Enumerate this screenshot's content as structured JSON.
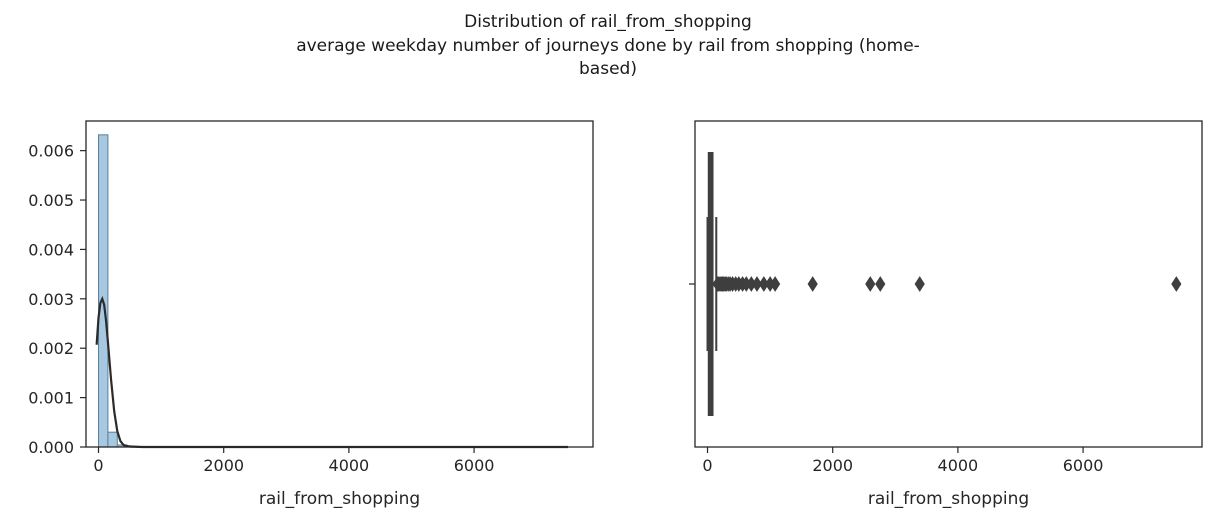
{
  "figure": {
    "title_line1": "Distribution of rail_from_shopping",
    "title_line2": "average weekday number of journeys done by rail from shopping (home-",
    "title_line3": "based)"
  },
  "colors": {
    "hist_fill": "#a6c8e0",
    "hist_edge": "#5b7f99",
    "kde": "#2b2b2b",
    "box": "#3f3f3f"
  },
  "chart_data": [
    {
      "type": "bar",
      "subtype": "histogram_with_kde",
      "xlabel": "rail_from_shopping",
      "ylabel": "",
      "xlim": [
        -200,
        7900
      ],
      "ylim": [
        0,
        0.0066
      ],
      "xticks": [
        0,
        2000,
        4000,
        6000
      ],
      "xtick_labels": [
        "0",
        "2000",
        "4000",
        "6000"
      ],
      "yticks": [
        0,
        0.001,
        0.002,
        0.003,
        0.004,
        0.005,
        0.006
      ],
      "ytick_labels": [
        "0.000",
        "0.001",
        "0.002",
        "0.003",
        "0.004",
        "0.005",
        "0.006"
      ],
      "bins": [
        {
          "x0": 0,
          "x1": 150,
          "density": 0.00632
        },
        {
          "x0": 150,
          "x1": 300,
          "density": 0.0003
        },
        {
          "x0": 300,
          "x1": 450,
          "density": 4e-05
        },
        {
          "x0": 450,
          "x1": 600,
          "density": 1e-05
        }
      ],
      "kde": {
        "x": [
          -30,
          0,
          30,
          60,
          90,
          120,
          150,
          200,
          250,
          300,
          350,
          400,
          500,
          700,
          1000,
          2000,
          4000,
          6000,
          7500
        ],
        "y": [
          0.00207,
          0.00262,
          0.00292,
          0.003,
          0.00288,
          0.00256,
          0.00213,
          0.00137,
          0.00073,
          0.00032,
          0.00012,
          4e-05,
          1e-05,
          0.0,
          0.0,
          0.0,
          0.0,
          0.0,
          0.0
        ]
      }
    },
    {
      "type": "boxplot",
      "xlabel": "rail_from_shopping",
      "xlim": [
        -200,
        7900
      ],
      "xticks": [
        0,
        2000,
        4000,
        6000
      ],
      "xtick_labels": [
        "0",
        "2000",
        "4000",
        "6000"
      ],
      "box": {
        "q1": 20,
        "median": 45,
        "q3": 80,
        "whisker_low": 0,
        "whisker_high": 140
      },
      "outliers": [
        160,
        180,
        200,
        220,
        240,
        260,
        280,
        300,
        330,
        360,
        400,
        450,
        500,
        560,
        620,
        700,
        790,
        900,
        1000,
        1080,
        1680,
        2600,
        2760,
        3390,
        7490
      ]
    }
  ]
}
